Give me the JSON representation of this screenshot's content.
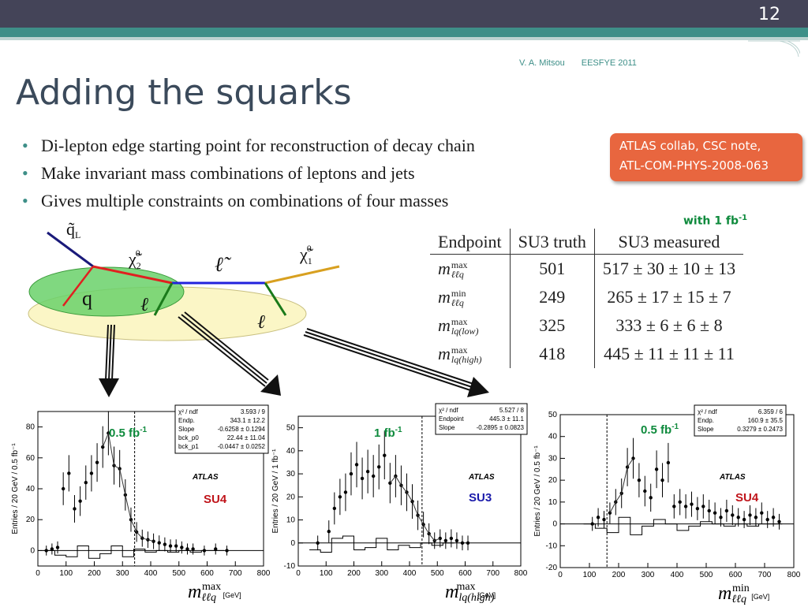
{
  "slide": {
    "number": "12",
    "footer_author": "V. A. Mitsou",
    "footer_event": "EESFYE 2011",
    "title": "Adding the squarks"
  },
  "bullets": [
    "Di-lepton edge starting point for reconstruction of decay chain",
    "Make invariant mass combinations of leptons and jets",
    "Gives multiple constraints on combinations of four masses"
  ],
  "reference_box": {
    "line1": "ATLAS collab, CSC note,",
    "line2": "ATL-COM-PHYS-2008-063"
  },
  "luminosity_note": {
    "text": "with 1 fb",
    "sup": "-1"
  },
  "diagram": {
    "squark": "q̃",
    "squark_sub": "L",
    "chi2": "χ̃",
    "chi2_sup": "0",
    "chi2_sub": "2",
    "slepton": "ℓ̃",
    "chi1": "χ̃",
    "chi1_sup": "0",
    "chi1_sub": "1",
    "quark": "q",
    "lepton_near": "ℓ",
    "lepton_far": "ℓ",
    "colors": {
      "squark": "#1a1a7a",
      "chi2": "#e02020",
      "slepton": "#2222dd",
      "chi1": "#d8a020",
      "lepton_line": "#1a7a1a",
      "ellipse_green": "#6ad16a",
      "ellipse_yellow": "#fbf6c6"
    }
  },
  "table": {
    "headers": [
      "Endpoint",
      "SU3 truth",
      "SU3 measured"
    ],
    "rows": [
      {
        "sym": "m",
        "sup": "max",
        "sub": "ℓℓq",
        "truth": "501",
        "measured": "517 ± 30 ± 10 ± 13"
      },
      {
        "sym": "m",
        "sup": "min",
        "sub": "ℓℓq",
        "truth": "249",
        "measured": "265 ± 17 ± 15 ± 7"
      },
      {
        "sym": "m",
        "sup": "max",
        "sub": "lq(low)",
        "truth": "325",
        "measured": "333 ± 6 ± 6 ± 8"
      },
      {
        "sym": "m",
        "sup": "max",
        "sub": "lq(high)",
        "truth": "418",
        "measured": "445 ± 11 ± 11 ± 11"
      }
    ]
  },
  "plot_labels": {
    "xlabel_left": "m",
    "xlabel_left_sup": "max",
    "xlabel_left_sub": "ℓℓq",
    "xlabel_mid": "m",
    "xlabel_mid_sup": "max",
    "xlabel_mid_sub": "lq(high)",
    "xlabel_right": "m",
    "xlabel_right_sup": "min",
    "xlabel_right_sub": "ℓℓq",
    "gev": "[GeV]"
  },
  "chart_data": [
    {
      "type": "scatter",
      "ylabel": "Entries / 20 GeV / 0.5 fb⁻¹",
      "experiment": "ATLAS",
      "sample": "SU4",
      "luminosity": "0.5 fb",
      "luminosity_sup": "-1",
      "xlim": [
        0,
        800
      ],
      "ylim": [
        -10,
        90
      ],
      "xticks": [
        0,
        100,
        200,
        300,
        400,
        500,
        600,
        700,
        800
      ],
      "yticks": [
        0,
        20,
        40,
        60,
        80
      ],
      "fit_box": [
        [
          "χ² / ndf",
          "3.593 / 9"
        ],
        [
          "Endp.",
          "343.1 ± 12.2"
        ],
        [
          "Slope",
          "-0.6258 ± 0.1294"
        ],
        [
          "bck_p0",
          "22.44 ± 11.04"
        ],
        [
          "bck_p1",
          "-0.0447 ± 0.0252"
        ]
      ],
      "endpoint_line": 343,
      "points": [
        [
          30,
          0
        ],
        [
          50,
          1
        ],
        [
          70,
          2
        ],
        [
          90,
          40
        ],
        [
          110,
          50
        ],
        [
          130,
          27
        ],
        [
          150,
          32
        ],
        [
          170,
          44
        ],
        [
          190,
          50
        ],
        [
          210,
          57
        ],
        [
          230,
          67
        ],
        [
          250,
          76
        ],
        [
          270,
          55
        ],
        [
          290,
          53
        ],
        [
          310,
          36
        ],
        [
          330,
          20
        ],
        [
          350,
          12
        ],
        [
          370,
          8
        ],
        [
          390,
          7
        ],
        [
          410,
          6
        ],
        [
          430,
          5
        ],
        [
          450,
          4
        ],
        [
          470,
          3
        ],
        [
          490,
          3
        ],
        [
          510,
          2
        ],
        [
          530,
          1
        ],
        [
          550,
          1
        ],
        [
          590,
          0
        ],
        [
          630,
          1
        ],
        [
          670,
          0
        ]
      ],
      "bkg": [
        [
          40,
          0
        ],
        [
          80,
          -3
        ],
        [
          120,
          -4
        ],
        [
          160,
          3
        ],
        [
          200,
          -5
        ],
        [
          240,
          -2
        ],
        [
          280,
          3
        ],
        [
          320,
          -4
        ],
        [
          360,
          1
        ],
        [
          400,
          -1
        ],
        [
          440,
          0
        ],
        [
          480,
          -1
        ],
        [
          520,
          0
        ],
        [
          560,
          -1
        ],
        [
          600,
          0
        ],
        [
          640,
          0
        ]
      ]
    },
    {
      "type": "scatter",
      "ylabel": "Entries / 20 GeV / 1 fb⁻¹",
      "experiment": "ATLAS",
      "sample": "SU3",
      "luminosity": "1 fb",
      "luminosity_sup": "-1",
      "xlim": [
        0,
        800
      ],
      "ylim": [
        -10,
        55
      ],
      "xticks": [
        0,
        100,
        200,
        300,
        400,
        500,
        600,
        700,
        800
      ],
      "yticks": [
        -10,
        0,
        10,
        20,
        30,
        40,
        50
      ],
      "fit_box": [
        [
          "χ² / ndf",
          "5.527 / 8"
        ],
        [
          "Endpoint",
          "445.3 ± 11.1"
        ],
        [
          "Slope",
          "-0.2895 ± 0.0823"
        ]
      ],
      "endpoint_line": 445,
      "points": [
        [
          70,
          0
        ],
        [
          110,
          5
        ],
        [
          130,
          15
        ],
        [
          150,
          20
        ],
        [
          170,
          22
        ],
        [
          190,
          30
        ],
        [
          210,
          34
        ],
        [
          230,
          28
        ],
        [
          250,
          31
        ],
        [
          270,
          29
        ],
        [
          290,
          33
        ],
        [
          310,
          38
        ],
        [
          330,
          26
        ],
        [
          350,
          29
        ],
        [
          370,
          25
        ],
        [
          390,
          22
        ],
        [
          410,
          18
        ],
        [
          430,
          12
        ],
        [
          450,
          8
        ],
        [
          470,
          4
        ],
        [
          490,
          1
        ],
        [
          510,
          2
        ],
        [
          530,
          1
        ],
        [
          550,
          2
        ],
        [
          570,
          1
        ],
        [
          590,
          0
        ],
        [
          610,
          0
        ]
      ],
      "bkg": [
        [
          60,
          -3
        ],
        [
          100,
          -4
        ],
        [
          140,
          2
        ],
        [
          180,
          3
        ],
        [
          220,
          -3
        ],
        [
          260,
          -2
        ],
        [
          300,
          2
        ],
        [
          340,
          -3
        ],
        [
          380,
          -1
        ],
        [
          420,
          -2
        ],
        [
          460,
          0
        ],
        [
          500,
          -1
        ],
        [
          540,
          0
        ]
      ]
    },
    {
      "type": "scatter",
      "ylabel": "Entries / 20 GeV / 0.5 fb⁻¹",
      "experiment": "ATLAS",
      "sample": "SU4",
      "luminosity": "0.5 fb",
      "luminosity_sup": "-1",
      "xlim": [
        0,
        800
      ],
      "ylim": [
        -20,
        50
      ],
      "xticks": [
        0,
        100,
        200,
        300,
        400,
        500,
        600,
        700,
        800
      ],
      "yticks": [
        -20,
        -10,
        0,
        10,
        20,
        30,
        40,
        50
      ],
      "fit_box": [
        [
          "χ² / ndf",
          "6.359 / 6"
        ],
        [
          "Endp.",
          "160.9 ± 35.5"
        ],
        [
          "Slope",
          "0.3279 ± 0.2473"
        ]
      ],
      "endpoint_line": 160,
      "points": [
        [
          110,
          0
        ],
        [
          130,
          3
        ],
        [
          150,
          2
        ],
        [
          170,
          5
        ],
        [
          190,
          10
        ],
        [
          210,
          14
        ],
        [
          230,
          26
        ],
        [
          250,
          30
        ],
        [
          270,
          20
        ],
        [
          290,
          15
        ],
        [
          310,
          12
        ],
        [
          330,
          25
        ],
        [
          350,
          20
        ],
        [
          370,
          28
        ],
        [
          390,
          8
        ],
        [
          410,
          10
        ],
        [
          430,
          8
        ],
        [
          450,
          9
        ],
        [
          470,
          7
        ],
        [
          490,
          8
        ],
        [
          510,
          6
        ],
        [
          530,
          5
        ],
        [
          550,
          3
        ],
        [
          570,
          6
        ],
        [
          590,
          4
        ],
        [
          610,
          3
        ],
        [
          630,
          2
        ],
        [
          650,
          4
        ],
        [
          670,
          3
        ],
        [
          690,
          5
        ],
        [
          710,
          2
        ],
        [
          730,
          3
        ],
        [
          750,
          1
        ]
      ],
      "bkg": [
        [
          100,
          0
        ],
        [
          140,
          -2
        ],
        [
          180,
          -4
        ],
        [
          220,
          3
        ],
        [
          260,
          -5
        ],
        [
          300,
          -1
        ],
        [
          340,
          2
        ],
        [
          380,
          0
        ],
        [
          420,
          -3
        ],
        [
          460,
          -1
        ],
        [
          500,
          1
        ],
        [
          540,
          0
        ],
        [
          580,
          -1
        ],
        [
          620,
          0
        ],
        [
          660,
          -1
        ],
        [
          700,
          0
        ],
        [
          740,
          0
        ]
      ]
    }
  ]
}
